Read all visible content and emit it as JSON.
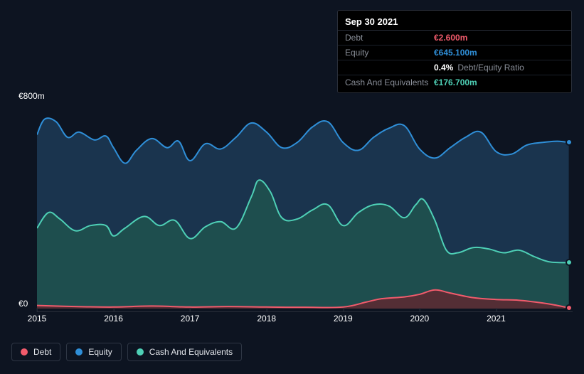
{
  "tooltip": {
    "date": "Sep 30 2021",
    "rows": [
      {
        "label": "Debt",
        "value": "€2.600m",
        "color": "#f15b6c"
      },
      {
        "label": "Equity",
        "value": "€645.100m",
        "color": "#2f8fd8"
      },
      {
        "label": "",
        "value": "0.4%",
        "color": "#ffffff",
        "extra": "Debt/Equity Ratio"
      },
      {
        "label": "Cash And Equivalents",
        "value": "€176.700m",
        "color": "#4ed0b6"
      }
    ]
  },
  "chart": {
    "type": "area",
    "y_axis": {
      "min": 0,
      "max": 800,
      "top_label": "€800m",
      "bottom_label": "€0"
    },
    "x_axis": {
      "min": 2015,
      "max": 2022,
      "ticks": [
        2015,
        2016,
        2017,
        2018,
        2019,
        2020,
        2021
      ]
    },
    "background_color": "#0d1421",
    "grid_color": "#2a2f3a",
    "series": [
      {
        "name": "Equity",
        "color": "#2f8fd8",
        "fill": "#1d3a56",
        "fill_opacity": 0.85,
        "data": [
          [
            2015.0,
            670
          ],
          [
            2015.1,
            730
          ],
          [
            2015.25,
            720
          ],
          [
            2015.4,
            660
          ],
          [
            2015.55,
            680
          ],
          [
            2015.75,
            650
          ],
          [
            2015.9,
            665
          ],
          [
            2016.0,
            620
          ],
          [
            2016.15,
            560
          ],
          [
            2016.3,
            610
          ],
          [
            2016.5,
            655
          ],
          [
            2016.7,
            620
          ],
          [
            2016.85,
            645
          ],
          [
            2017.0,
            570
          ],
          [
            2017.2,
            635
          ],
          [
            2017.4,
            615
          ],
          [
            2017.6,
            660
          ],
          [
            2017.8,
            715
          ],
          [
            2018.0,
            680
          ],
          [
            2018.2,
            620
          ],
          [
            2018.4,
            640
          ],
          [
            2018.6,
            700
          ],
          [
            2018.8,
            720
          ],
          [
            2019.0,
            640
          ],
          [
            2019.2,
            610
          ],
          [
            2019.4,
            660
          ],
          [
            2019.6,
            695
          ],
          [
            2019.8,
            705
          ],
          [
            2020.0,
            615
          ],
          [
            2020.2,
            580
          ],
          [
            2020.4,
            620
          ],
          [
            2020.6,
            660
          ],
          [
            2020.8,
            680
          ],
          [
            2021.0,
            605
          ],
          [
            2021.2,
            595
          ],
          [
            2021.4,
            630
          ],
          [
            2021.6,
            640
          ],
          [
            2021.8,
            645
          ],
          [
            2021.95,
            640
          ]
        ]
      },
      {
        "name": "Cash And Equivalents",
        "color": "#4ed0b6",
        "fill": "#20544f",
        "fill_opacity": 0.85,
        "data": [
          [
            2015.0,
            310
          ],
          [
            2015.15,
            370
          ],
          [
            2015.3,
            345
          ],
          [
            2015.5,
            300
          ],
          [
            2015.7,
            320
          ],
          [
            2015.9,
            320
          ],
          [
            2016.0,
            280
          ],
          [
            2016.15,
            310
          ],
          [
            2016.4,
            355
          ],
          [
            2016.6,
            320
          ],
          [
            2016.8,
            340
          ],
          [
            2017.0,
            270
          ],
          [
            2017.2,
            315
          ],
          [
            2017.4,
            335
          ],
          [
            2017.6,
            310
          ],
          [
            2017.8,
            430
          ],
          [
            2017.9,
            495
          ],
          [
            2018.05,
            450
          ],
          [
            2018.2,
            350
          ],
          [
            2018.4,
            345
          ],
          [
            2018.6,
            380
          ],
          [
            2018.8,
            400
          ],
          [
            2019.0,
            320
          ],
          [
            2019.2,
            370
          ],
          [
            2019.4,
            400
          ],
          [
            2019.6,
            395
          ],
          [
            2019.8,
            350
          ],
          [
            2019.95,
            400
          ],
          [
            2020.05,
            420
          ],
          [
            2020.2,
            340
          ],
          [
            2020.35,
            225
          ],
          [
            2020.5,
            215
          ],
          [
            2020.7,
            235
          ],
          [
            2020.9,
            230
          ],
          [
            2021.1,
            215
          ],
          [
            2021.3,
            225
          ],
          [
            2021.5,
            200
          ],
          [
            2021.7,
            180
          ],
          [
            2021.95,
            177
          ]
        ]
      },
      {
        "name": "Debt",
        "color": "#f15b6c",
        "fill": "#5a2b33",
        "fill_opacity": 0.9,
        "data": [
          [
            2015.0,
            12
          ],
          [
            2015.5,
            8
          ],
          [
            2016.0,
            6
          ],
          [
            2016.5,
            10
          ],
          [
            2017.0,
            6
          ],
          [
            2017.5,
            8
          ],
          [
            2018.0,
            6
          ],
          [
            2018.5,
            5
          ],
          [
            2019.0,
            6
          ],
          [
            2019.3,
            25
          ],
          [
            2019.5,
            38
          ],
          [
            2019.8,
            45
          ],
          [
            2020.0,
            55
          ],
          [
            2020.2,
            72
          ],
          [
            2020.4,
            60
          ],
          [
            2020.7,
            42
          ],
          [
            2021.0,
            35
          ],
          [
            2021.3,
            32
          ],
          [
            2021.6,
            22
          ],
          [
            2021.8,
            12
          ],
          [
            2021.95,
            3
          ]
        ]
      }
    ],
    "legend": [
      {
        "label": "Debt",
        "color": "#f15b6c"
      },
      {
        "label": "Equity",
        "color": "#2f8fd8"
      },
      {
        "label": "Cash And Equivalents",
        "color": "#4ed0b6"
      }
    ]
  }
}
